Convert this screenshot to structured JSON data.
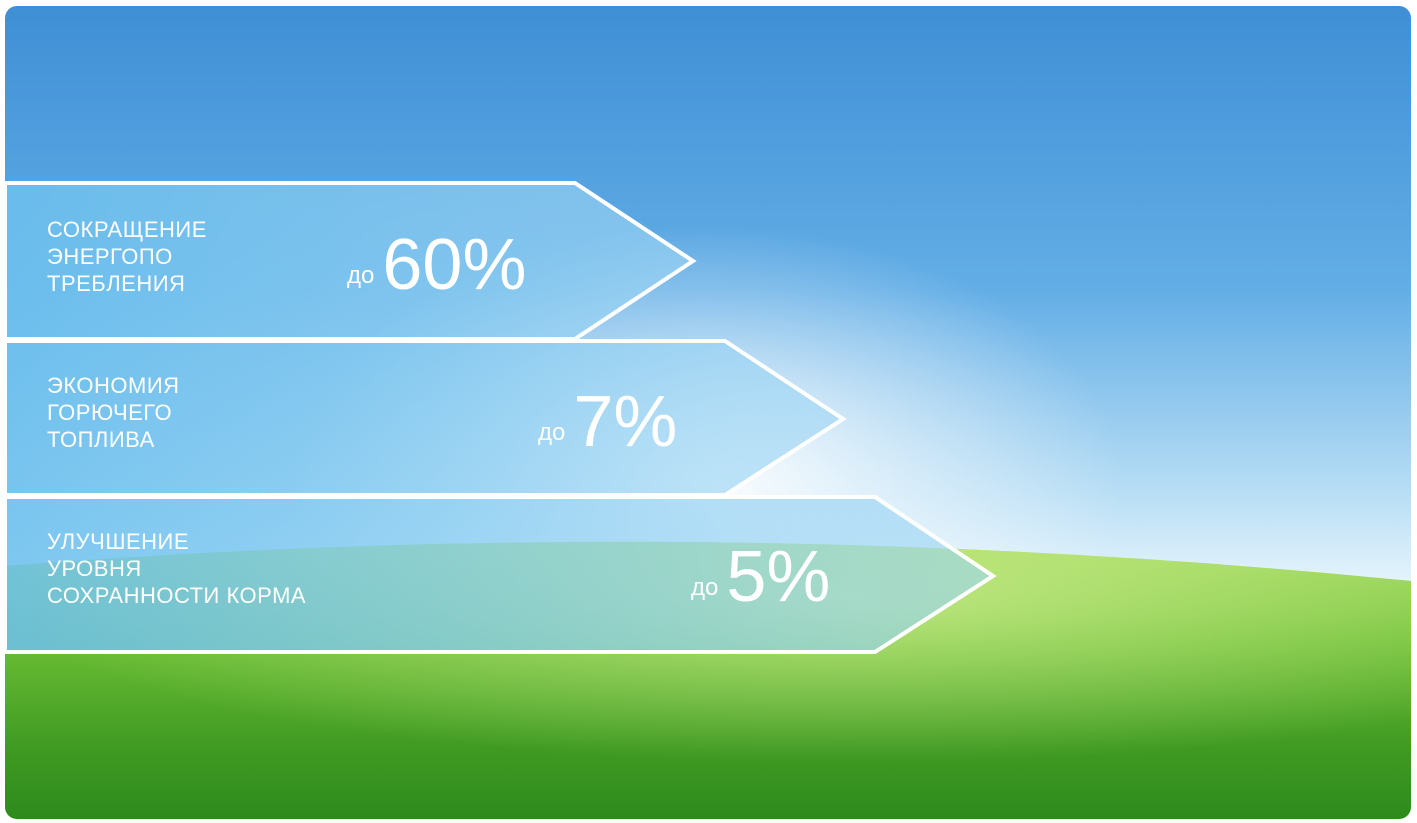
{
  "benefits": [
    {
      "lines": [
        "СОКРАЩЕНИЕ",
        "ЭНЕРГОПО",
        "ТРЕБЛЕНИЯ"
      ],
      "prefix": "до",
      "value": "60%"
    },
    {
      "lines": [
        "ЭКОНОМИЯ",
        "ГОРЮЧЕГО",
        "ТОПЛИВА"
      ],
      "prefix": "до",
      "value": "7%"
    },
    {
      "lines": [
        "УЛУЧШЕНИЕ",
        "УРОВНЯ",
        "СОХРАННОСТИ КОРМА"
      ],
      "prefix": "до",
      "value": "5%"
    }
  ],
  "colors": {
    "sky_top": "#3f93d8",
    "sky_bottom": "#e9f6fd",
    "grass_light": "#8fd14a",
    "grass_dark": "#2e8a1c",
    "banner_fill": "#7cc6ef",
    "banner_outline": "#ffffff"
  }
}
